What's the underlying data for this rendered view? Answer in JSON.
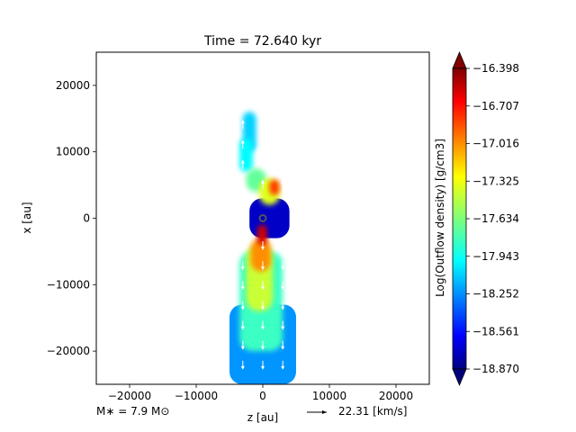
{
  "chart_data": {
    "type": "heatmap",
    "title": "Time = 72.640 kyr",
    "xlabel": "z [au]",
    "ylabel": "x [au]",
    "xlim": [
      -25000,
      25000
    ],
    "ylim": [
      -25000,
      25000
    ],
    "xticks": [
      -20000,
      -10000,
      0,
      10000,
      20000
    ],
    "xtick_labels": [
      "−20000",
      "−10000",
      "0",
      "10000",
      "20000"
    ],
    "yticks": [
      20000,
      10000,
      0,
      -10000,
      -20000
    ],
    "ytick_labels": [
      "20000",
      "10000",
      "0",
      "−10000",
      "−20000"
    ],
    "grid": false,
    "colormap": "jet",
    "colorbar": {
      "label": "Log(Outflow density) [g/cm3]",
      "min": -18.87,
      "max": -16.398,
      "extend": "both",
      "ticks": [
        -16.398,
        -16.707,
        -17.016,
        -17.325,
        -17.634,
        -17.943,
        -18.252,
        -18.561,
        -18.87
      ],
      "tick_labels": [
        "−16.398",
        "−16.707",
        "−17.016",
        "−17.325",
        "−17.634",
        "−17.943",
        "−18.252",
        "−18.561",
        "−18.870"
      ]
    },
    "annotations": {
      "mass": "M∗ = 7.9 M⊙",
      "velocity_key": "22.31 [km/s]"
    },
    "star_position": [
      0,
      0
    ],
    "lobes": [
      {
        "name": "upper",
        "bands": [
          {
            "x": [
              -3000,
              3000
            ],
            "z": [
              -2000,
              4000
            ],
            "value": -18.7
          },
          {
            "x": [
              10000,
              16000
            ],
            "z": [
              -3000,
              -1000
            ],
            "value": -18.05
          },
          {
            "x": [
              7000,
              12000
            ],
            "z": [
              -3500,
              -1500
            ],
            "value": -17.95
          },
          {
            "x": [
              4000,
              7500
            ],
            "z": [
              -2500,
              500
            ],
            "value": -17.7
          },
          {
            "x": [
              2000,
              6000
            ],
            "z": [
              -500,
              2500
            ],
            "value": -17.4
          },
          {
            "x": [
              3500,
              5800
            ],
            "z": [
              1000,
              2500
            ],
            "value": -16.85
          }
        ]
      },
      {
        "name": "lower",
        "bands": [
          {
            "x": [
              -25000,
              -13000
            ],
            "z": [
              -5000,
              5000
            ],
            "value": -18.2
          },
          {
            "x": [
              -20000,
              -5000
            ],
            "z": [
              -3500,
              3000
            ],
            "value": -17.8
          },
          {
            "x": [
              -14000,
              -4000
            ],
            "z": [
              -2500,
              1500
            ],
            "value": -17.45
          },
          {
            "x": [
              -8000,
              -3000
            ],
            "z": [
              -1800,
              1200
            ],
            "value": -17.05
          },
          {
            "x": [
              -4000,
              -1000
            ],
            "z": [
              -800,
              600
            ],
            "value": -16.6
          }
        ]
      }
    ]
  }
}
